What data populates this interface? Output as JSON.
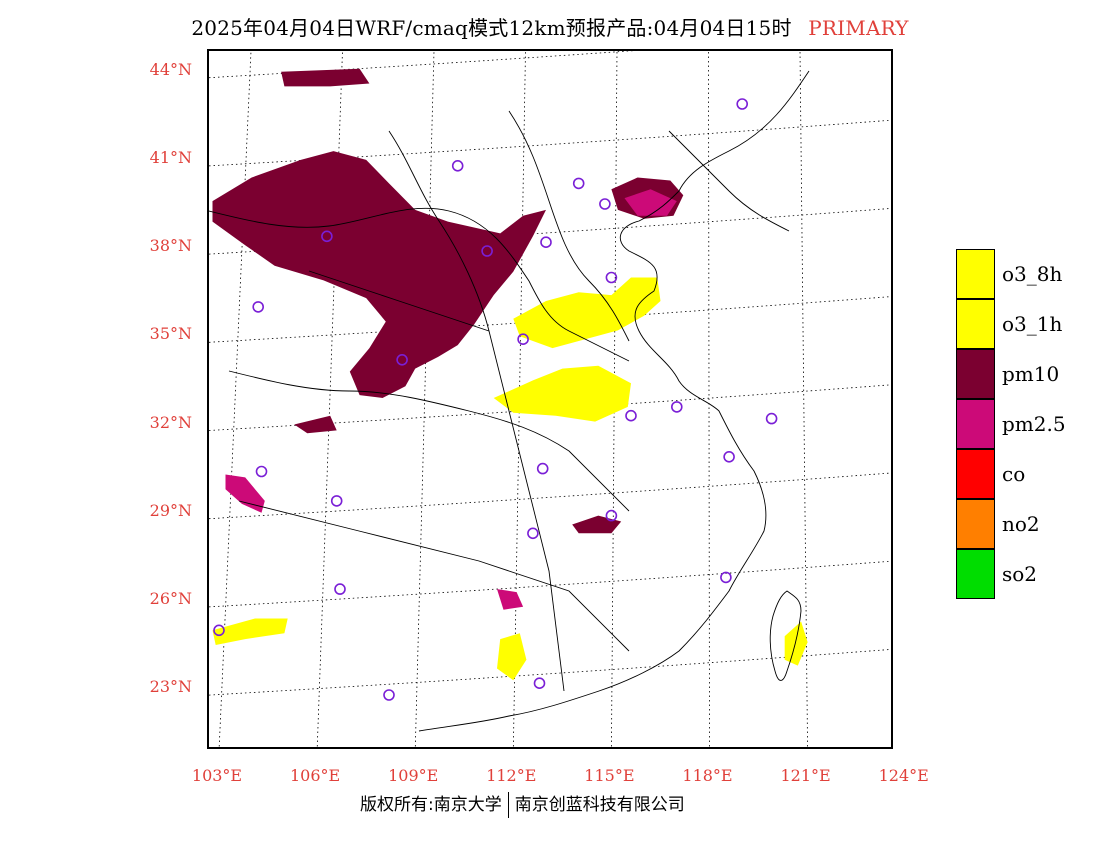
{
  "title": {
    "main": "2025年04月04日WRF/cmaq模式12km预报产品:04月04日15时",
    "tag": "PRIMARY"
  },
  "latitude_labels": [
    {
      "text": "44°N",
      "lat": 44
    },
    {
      "text": "41°N",
      "lat": 41
    },
    {
      "text": "38°N",
      "lat": 38
    },
    {
      "text": "35°N",
      "lat": 35
    },
    {
      "text": "32°N",
      "lat": 32
    },
    {
      "text": "29°N",
      "lat": 29
    },
    {
      "text": "26°N",
      "lat": 26
    },
    {
      "text": "23°N",
      "lat": 23
    }
  ],
  "longitude_labels": [
    {
      "text": "103°E",
      "lon": 103
    },
    {
      "text": "106°E",
      "lon": 106
    },
    {
      "text": "109°E",
      "lon": 109
    },
    {
      "text": "112°E",
      "lon": 112
    },
    {
      "text": "115°E",
      "lon": 115
    },
    {
      "text": "118°E",
      "lon": 118
    },
    {
      "text": "121°E",
      "lon": 121
    },
    {
      "text": "124°E",
      "lon": 124
    }
  ],
  "legend": [
    {
      "label": "o3_8h",
      "color": "#ffff00"
    },
    {
      "label": "o3_1h",
      "color": "#ffff00"
    },
    {
      "label": "pm10",
      "color": "#7b0030"
    },
    {
      "label": "pm2.5",
      "color": "#cc0a78"
    },
    {
      "label": "co",
      "color": "#ff0000"
    },
    {
      "label": "no2",
      "color": "#ff7f00"
    },
    {
      "label": "so2",
      "color": "#00dd00"
    }
  ],
  "stations": [
    [
      119.0,
      42.9
    ],
    [
      110.3,
      40.8
    ],
    [
      114.0,
      40.2
    ],
    [
      114.8,
      39.5
    ],
    [
      106.3,
      38.4
    ],
    [
      111.2,
      37.9
    ],
    [
      113.0,
      38.2
    ],
    [
      115.0,
      37.0
    ],
    [
      104.2,
      36.0
    ],
    [
      112.3,
      34.9
    ],
    [
      108.6,
      34.2
    ],
    [
      117.0,
      32.6
    ],
    [
      115.6,
      32.3
    ],
    [
      119.9,
      32.2
    ],
    [
      104.3,
      30.4
    ],
    [
      112.9,
      30.5
    ],
    [
      118.6,
      30.9
    ],
    [
      106.6,
      29.4
    ],
    [
      115.0,
      28.9
    ],
    [
      112.6,
      28.3
    ],
    [
      118.5,
      26.8
    ],
    [
      106.7,
      26.4
    ],
    [
      103.0,
      25.0
    ],
    [
      112.8,
      23.2
    ],
    [
      108.2,
      22.8
    ]
  ],
  "pollution_areas": [
    {
      "pollutant": "pm10",
      "region": "inner-mongolia-ningxia-gansu",
      "points": [
        [
          102.8,
          39.6
        ],
        [
          104.0,
          40.4
        ],
        [
          105.5,
          41.0
        ],
        [
          106.5,
          41.3
        ],
        [
          107.5,
          41.0
        ],
        [
          108.2,
          40.2
        ],
        [
          109.0,
          39.3
        ],
        [
          110.0,
          38.9
        ],
        [
          111.6,
          38.5
        ],
        [
          112.3,
          39.1
        ],
        [
          113.0,
          39.3
        ],
        [
          112.6,
          38.4
        ],
        [
          112.0,
          37.2
        ],
        [
          111.4,
          36.4
        ],
        [
          110.8,
          35.4
        ],
        [
          110.3,
          34.7
        ],
        [
          109.7,
          34.3
        ],
        [
          109.0,
          33.9
        ],
        [
          108.7,
          33.3
        ],
        [
          108.0,
          32.9
        ],
        [
          107.3,
          33.0
        ],
        [
          107.0,
          33.8
        ],
        [
          107.6,
          34.6
        ],
        [
          108.1,
          35.5
        ],
        [
          107.5,
          36.3
        ],
        [
          106.2,
          36.9
        ],
        [
          104.7,
          37.4
        ],
        [
          103.8,
          38.1
        ],
        [
          102.8,
          38.9
        ]
      ]
    },
    {
      "pollution": null
    },
    {
      "pollutant": "pm10",
      "region": "north-blob",
      "points": [
        [
          104.9,
          44.0
        ],
        [
          107.3,
          44.1
        ],
        [
          107.6,
          43.6
        ],
        [
          106.4,
          43.5
        ],
        [
          105.0,
          43.5
        ]
      ]
    },
    {
      "pollutant": "pm10",
      "region": "bj-tj",
      "points": [
        [
          115.0,
          40.0
        ],
        [
          115.8,
          40.4
        ],
        [
          116.8,
          40.3
        ],
        [
          117.2,
          39.8
        ],
        [
          116.9,
          39.1
        ],
        [
          116.0,
          39.0
        ],
        [
          115.2,
          39.3
        ]
      ]
    },
    {
      "pollutant": "pm2.5",
      "region": "bj-tj-core",
      "points": [
        [
          115.4,
          39.7
        ],
        [
          116.2,
          40.0
        ],
        [
          117.0,
          39.6
        ],
        [
          116.7,
          39.1
        ],
        [
          115.8,
          39.1
        ]
      ]
    },
    {
      "pollutant": "o3",
      "region": "henan-north",
      "points": [
        [
          112.0,
          35.6
        ],
        [
          113.0,
          36.2
        ],
        [
          114.0,
          36.5
        ],
        [
          115.0,
          36.4
        ],
        [
          115.6,
          37.0
        ],
        [
          116.4,
          37.0
        ],
        [
          116.5,
          36.2
        ],
        [
          116.0,
          35.7
        ],
        [
          115.2,
          35.2
        ],
        [
          114.2,
          34.9
        ],
        [
          113.2,
          34.6
        ],
        [
          112.2,
          35.0
        ]
      ]
    },
    {
      "pollutant": "o3",
      "region": "henan-south",
      "points": [
        [
          111.4,
          32.9
        ],
        [
          112.6,
          33.5
        ],
        [
          113.5,
          33.9
        ],
        [
          114.6,
          34.0
        ],
        [
          115.6,
          33.4
        ],
        [
          115.5,
          32.6
        ],
        [
          114.5,
          32.1
        ],
        [
          113.3,
          32.3
        ],
        [
          112.0,
          32.4
        ]
      ]
    },
    {
      "pollutant": "o3",
      "region": "guangdong",
      "points": [
        [
          111.6,
          24.7
        ],
        [
          112.2,
          24.9
        ],
        [
          112.4,
          24.0
        ],
        [
          112.0,
          23.3
        ],
        [
          111.5,
          23.7
        ]
      ]
    },
    {
      "pollutant": "o3",
      "region": "yunnan",
      "points": [
        [
          102.8,
          25.0
        ],
        [
          104.1,
          25.4
        ],
        [
          105.1,
          25.4
        ],
        [
          105.0,
          24.9
        ],
        [
          103.8,
          24.7
        ],
        [
          102.9,
          24.5
        ]
      ]
    },
    {
      "pollutant": "o3",
      "region": "taiwan",
      "points": [
        [
          120.3,
          24.8
        ],
        [
          120.8,
          25.3
        ],
        [
          121.0,
          24.6
        ],
        [
          120.7,
          23.8
        ],
        [
          120.3,
          24.0
        ]
      ]
    },
    {
      "pollutant": "pm2.5",
      "region": "sichuan-west",
      "points": [
        [
          103.2,
          30.3
        ],
        [
          103.8,
          30.2
        ],
        [
          104.4,
          29.4
        ],
        [
          104.3,
          29.0
        ],
        [
          103.7,
          29.3
        ],
        [
          103.2,
          29.8
        ]
      ]
    },
    {
      "pollutant": "pm2.5",
      "region": "hunan",
      "points": [
        [
          111.5,
          26.4
        ],
        [
          112.1,
          26.3
        ],
        [
          112.3,
          25.8
        ],
        [
          111.7,
          25.7
        ]
      ]
    },
    {
      "pollutant": "pm10",
      "region": "jiangxi",
      "points": [
        [
          113.8,
          28.6
        ],
        [
          114.6,
          28.9
        ],
        [
          115.3,
          28.7
        ],
        [
          115.0,
          28.3
        ],
        [
          114.0,
          28.3
        ]
      ]
    },
    {
      "pollutant": "pm10",
      "region": "sichuan-east",
      "points": [
        [
          105.3,
          32.0
        ],
        [
          106.4,
          32.3
        ],
        [
          106.6,
          31.8
        ],
        [
          105.7,
          31.7
        ]
      ]
    }
  ]
}
